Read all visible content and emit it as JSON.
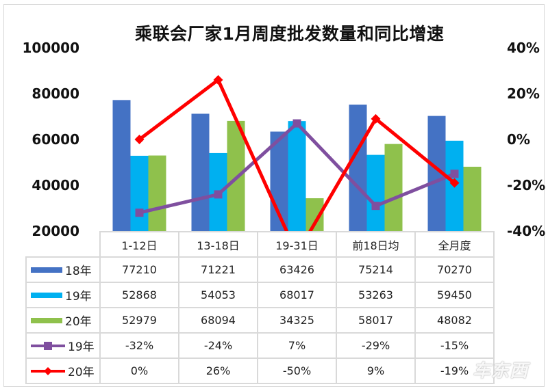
{
  "chart_data": {
    "type": "bar+line",
    "title": "乘联会厂家1月周度批发数量和同比增速",
    "categories": [
      "1-12日",
      "13-18日",
      "19-31日",
      "前18日均",
      "全月度"
    ],
    "bar_series": [
      {
        "name": "18年",
        "color": "#4472c4",
        "values": [
          77210,
          71221,
          63426,
          75214,
          70270
        ]
      },
      {
        "name": "19年",
        "color": "#00b0f0",
        "values": [
          52868,
          54053,
          68017,
          53263,
          59450
        ]
      },
      {
        "name": "20年",
        "color": "#8fc14c",
        "values": [
          52979,
          68094,
          34325,
          58017,
          48082
        ]
      }
    ],
    "line_series": [
      {
        "name": "19年",
        "color": "#7f4f9f",
        "marker": "square",
        "axis": "right",
        "values": [
          -32,
          -24,
          7,
          -29,
          -15
        ],
        "labels": [
          "-32%",
          "-24%",
          "7%",
          "-29%",
          "-15%"
        ]
      },
      {
        "name": "20年",
        "color": "#ff0000",
        "marker": "diamond",
        "axis": "right",
        "values": [
          0,
          26,
          -50,
          9,
          -19
        ],
        "labels": [
          "0%",
          "26%",
          "-50%",
          "9%",
          "-19%"
        ]
      }
    ],
    "y_left": {
      "ticks": [
        "100000",
        "80000",
        "60000",
        "40000",
        "20000"
      ],
      "range": [
        20000,
        100000
      ]
    },
    "y_right": {
      "ticks": [
        "40%",
        "20%",
        "0%",
        "-20%",
        "-40%"
      ],
      "range": [
        -40,
        40
      ]
    },
    "grid": false,
    "legend_position": "data-table"
  },
  "table": {
    "rows": [
      {
        "label": "18年",
        "cells": [
          "77210",
          "71221",
          "63426",
          "75214",
          "70270"
        ]
      },
      {
        "label": "19年",
        "cells": [
          "52868",
          "54053",
          "68017",
          "53263",
          "59450"
        ]
      },
      {
        "label": "20年",
        "cells": [
          "52979",
          "68094",
          "34325",
          "58017",
          "48082"
        ]
      },
      {
        "label": "19年",
        "cells": [
          "-32%",
          "-24%",
          "7%",
          "-29%",
          "-15%"
        ]
      },
      {
        "label": "20年",
        "cells": [
          "0%",
          "26%",
          "-50%",
          "9%",
          "-19%"
        ]
      }
    ]
  },
  "watermark": "车东西"
}
